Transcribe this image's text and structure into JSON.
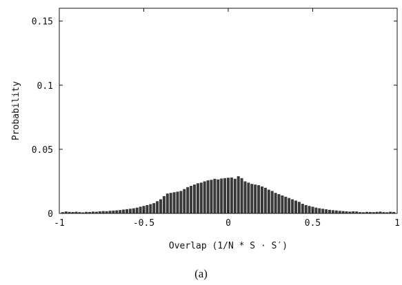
{
  "chart_data": {
    "type": "bar",
    "title": "",
    "xlabel": "Overlap (1/N * S · S′)",
    "ylabel": "Probability",
    "xlim": [
      -1,
      1
    ],
    "ylim": [
      0,
      0.16
    ],
    "xticks": [
      -1,
      -0.5,
      0,
      0.5,
      1
    ],
    "xtick_labels": [
      "-1",
      "-0.5",
      "0",
      "0.5",
      "1"
    ],
    "yticks": [
      0,
      0.05,
      0.1,
      0.15
    ],
    "ytick_labels": [
      "0",
      "0.05",
      "0.1",
      "0.15"
    ],
    "grid": false,
    "legend": "none",
    "bar_color": "#3a3a3a",
    "x": [
      -0.98,
      -0.96,
      -0.94,
      -0.92,
      -0.9,
      -0.88,
      -0.86,
      -0.84,
      -0.82,
      -0.8,
      -0.78,
      -0.76,
      -0.74,
      -0.72,
      -0.7,
      -0.68,
      -0.66,
      -0.64,
      -0.62,
      -0.6,
      -0.58,
      -0.56,
      -0.54,
      -0.52,
      -0.5,
      -0.48,
      -0.46,
      -0.44,
      -0.42,
      -0.4,
      -0.38,
      -0.36,
      -0.34,
      -0.32,
      -0.3,
      -0.28,
      -0.26,
      -0.24,
      -0.22,
      -0.2,
      -0.18,
      -0.16,
      -0.14,
      -0.12,
      -0.1,
      -0.08,
      -0.06,
      -0.04,
      -0.02,
      0.0,
      0.02,
      0.04,
      0.06,
      0.08,
      0.1,
      0.12,
      0.14,
      0.16,
      0.18,
      0.2,
      0.22,
      0.24,
      0.26,
      0.28,
      0.3,
      0.32,
      0.34,
      0.36,
      0.38,
      0.4,
      0.42,
      0.44,
      0.46,
      0.48,
      0.5,
      0.52,
      0.54,
      0.56,
      0.58,
      0.6,
      0.62,
      0.64,
      0.66,
      0.68,
      0.7,
      0.72,
      0.74,
      0.76,
      0.78,
      0.8,
      0.82,
      0.84,
      0.86,
      0.88,
      0.9,
      0.92,
      0.94,
      0.96,
      0.98
    ],
    "values": [
      0.001,
      0.0015,
      0.0012,
      0.0011,
      0.0013,
      0.001,
      0.0008,
      0.0012,
      0.0011,
      0.0014,
      0.0013,
      0.0016,
      0.0018,
      0.0017,
      0.002,
      0.0022,
      0.0024,
      0.0026,
      0.003,
      0.0033,
      0.0036,
      0.004,
      0.0045,
      0.0052,
      0.0058,
      0.0065,
      0.0072,
      0.008,
      0.0095,
      0.011,
      0.0135,
      0.0155,
      0.016,
      0.0165,
      0.017,
      0.0175,
      0.019,
      0.0205,
      0.0215,
      0.0225,
      0.0235,
      0.024,
      0.025,
      0.0258,
      0.0262,
      0.027,
      0.0265,
      0.0272,
      0.0275,
      0.0278,
      0.028,
      0.027,
      0.029,
      0.0275,
      0.025,
      0.024,
      0.023,
      0.0225,
      0.022,
      0.021,
      0.02,
      0.0185,
      0.0175,
      0.016,
      0.015,
      0.014,
      0.013,
      0.012,
      0.011,
      0.01,
      0.009,
      0.0075,
      0.0065,
      0.0058,
      0.0052,
      0.0045,
      0.004,
      0.0036,
      0.0032,
      0.0028,
      0.0025,
      0.0023,
      0.002,
      0.0018,
      0.0016,
      0.0014,
      0.0016,
      0.0015,
      0.001,
      0.0009,
      0.0012,
      0.0011,
      0.001,
      0.0012,
      0.0014,
      0.001,
      0.0009,
      0.0013,
      0.0011
    ]
  },
  "caption": "(a)"
}
